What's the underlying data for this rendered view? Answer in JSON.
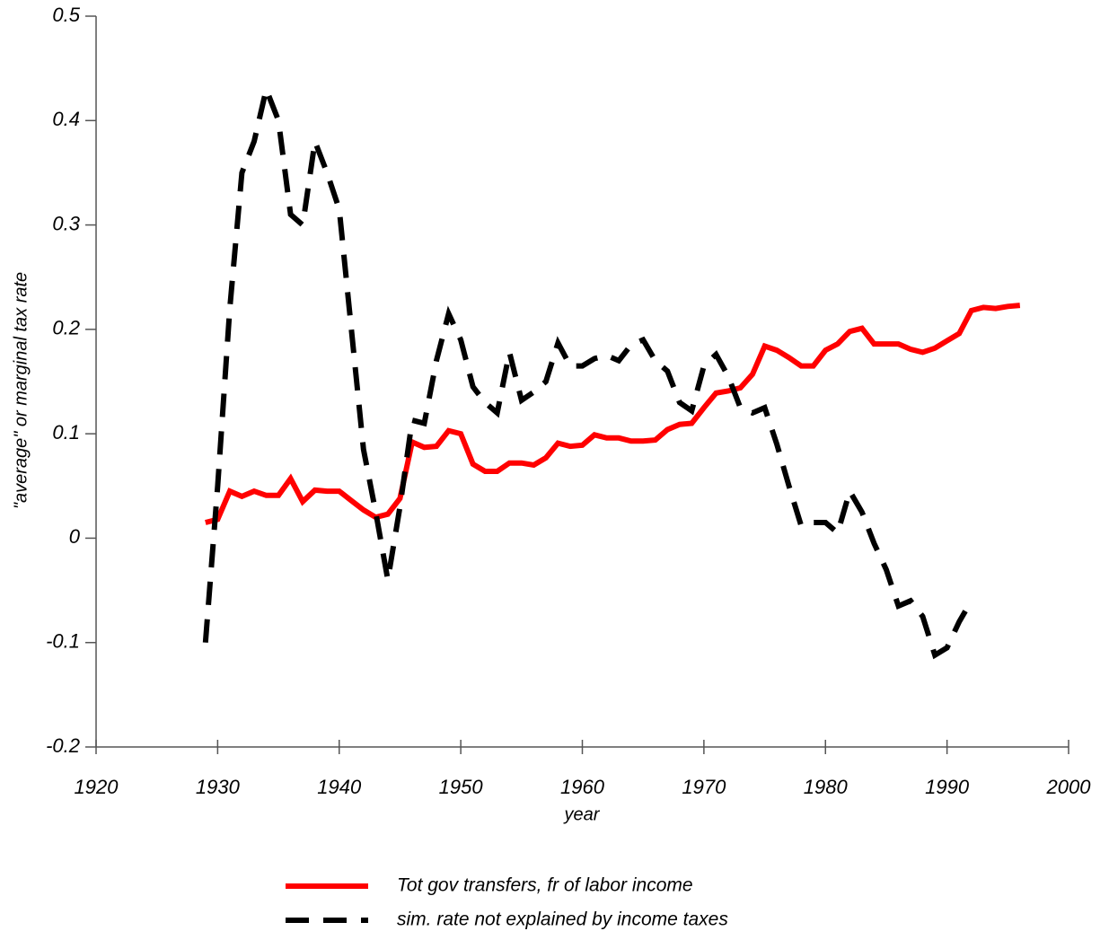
{
  "chart_data": {
    "type": "line",
    "xlabel": "year",
    "ylabel": "\"average\" or marginal tax rate",
    "xlim": [
      1920,
      2000
    ],
    "xticks": [
      1920,
      1930,
      1940,
      1950,
      1960,
      1970,
      1980,
      1990,
      2000
    ],
    "ylim": [
      -0.2,
      0.5
    ],
    "yticks": [
      -0.2,
      -0.1,
      0,
      0.1,
      0.2,
      0.3,
      0.4,
      0.5
    ],
    "series": [
      {
        "name": "Tot gov transfers, fr of labor income",
        "color": "#ff0000",
        "dash": "solid",
        "x": [
          1929,
          1930,
          1931,
          1932,
          1933,
          1934,
          1935,
          1936,
          1937,
          1938,
          1939,
          1940,
          1941,
          1942,
          1943,
          1944,
          1945,
          1946,
          1947,
          1948,
          1949,
          1950,
          1951,
          1952,
          1953,
          1954,
          1955,
          1956,
          1957,
          1958,
          1959,
          1960,
          1961,
          1962,
          1963,
          1964,
          1965,
          1966,
          1967,
          1968,
          1969,
          1970,
          1971,
          1972,
          1973,
          1974,
          1975,
          1976,
          1977,
          1978,
          1979,
          1980,
          1981,
          1982,
          1983,
          1984,
          1985,
          1986,
          1987,
          1988,
          1989,
          1990,
          1991,
          1992,
          1993,
          1994,
          1995,
          1996
        ],
        "values": [
          0.015,
          0.018,
          0.045,
          0.04,
          0.045,
          0.041,
          0.041,
          0.057,
          0.035,
          0.046,
          0.045,
          0.045,
          0.036,
          0.027,
          0.02,
          0.023,
          0.038,
          0.092,
          0.087,
          0.088,
          0.103,
          0.1,
          0.071,
          0.064,
          0.064,
          0.072,
          0.072,
          0.07,
          0.077,
          0.091,
          0.088,
          0.089,
          0.099,
          0.096,
          0.096,
          0.093,
          0.093,
          0.094,
          0.104,
          0.109,
          0.11,
          0.125,
          0.139,
          0.141,
          0.144,
          0.157,
          0.184,
          0.18,
          0.173,
          0.165,
          0.165,
          0.18,
          0.186,
          0.198,
          0.201,
          0.186,
          0.186,
          0.186,
          0.181,
          0.178,
          0.182,
          0.189,
          0.196,
          0.218,
          0.221,
          0.22,
          0.222,
          0.223
        ]
      },
      {
        "name": "sim. rate not explained by income taxes",
        "color": "#000000",
        "dash": "dashed",
        "x": [
          1929,
          1930,
          1931,
          1932,
          1933,
          1934,
          1935,
          1936,
          1937,
          1938,
          1939,
          1940,
          1941,
          1942,
          1943,
          1944,
          1945,
          1946,
          1947,
          1948,
          1949,
          1950,
          1951,
          1952,
          1953,
          1954,
          1955,
          1956,
          1957,
          1958,
          1959,
          1960,
          1961,
          1962,
          1963,
          1964,
          1965,
          1966,
          1967,
          1968,
          1969,
          1970,
          1971,
          1972,
          1973,
          1974,
          1975,
          1976,
          1977,
          1978,
          1979,
          1980,
          1981,
          1982,
          1983,
          1984,
          1985,
          1986,
          1987,
          1988,
          1989,
          1990,
          1991,
          1992
        ],
        "values": [
          -0.1,
          0.05,
          0.22,
          0.35,
          0.38,
          0.43,
          0.4,
          0.31,
          0.3,
          0.38,
          0.35,
          0.315,
          0.2,
          0.085,
          0.025,
          -0.04,
          0.03,
          0.113,
          0.11,
          0.17,
          0.215,
          0.19,
          0.145,
          0.13,
          0.12,
          0.178,
          0.132,
          0.14,
          0.15,
          0.187,
          0.165,
          0.165,
          0.172,
          0.175,
          0.17,
          0.185,
          0.19,
          0.17,
          0.16,
          0.13,
          0.122,
          0.165,
          0.176,
          0.155,
          0.125,
          0.12,
          0.125,
          0.09,
          0.05,
          0.012,
          0.015,
          0.015,
          0.005,
          0.045,
          0.025,
          -0.005,
          -0.03,
          -0.065,
          -0.06,
          -0.075,
          -0.112,
          -0.105,
          -0.08,
          -0.06
        ]
      }
    ]
  }
}
